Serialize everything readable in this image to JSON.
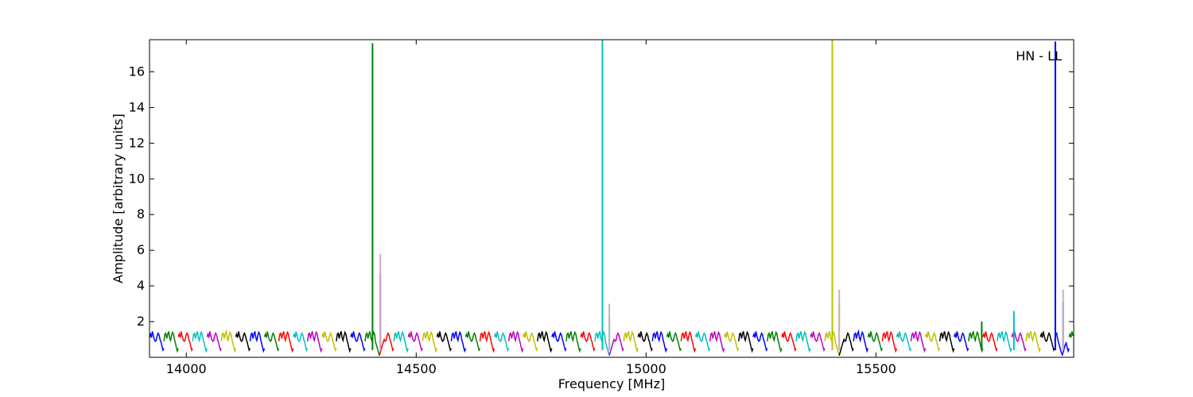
{
  "chart_data": {
    "type": "line",
    "title": "",
    "xlabel": "Frequency [MHz]",
    "ylabel": "Amplitude [arbitrary units]",
    "annotation": "HN - LL",
    "xlim": [
      13920,
      15930
    ],
    "ylim": [
      0,
      17.8
    ],
    "x_ticks": [
      14000,
      14500,
      15000,
      15500
    ],
    "y_ticks": [
      2,
      4,
      6,
      8,
      10,
      12,
      14,
      16
    ],
    "grid": false,
    "segment_width_mhz": 31.25,
    "segment_start_mhz": 13920,
    "segment_colors": [
      "#0000ff",
      "#007f00",
      "#ff0000",
      "#00bfbf",
      "#bf00bf",
      "#bfbf00",
      "#000000"
    ],
    "series": [
      {
        "values": [
          1.15,
          1.3,
          1.1,
          1.45,
          1.2,
          1.0,
          0.9,
          0.95,
          1.2,
          1.35,
          1.25,
          1.0,
          0.85,
          0.6,
          0.4,
          0.5
        ]
      },
      {
        "values": [
          0.9,
          1.3,
          1.35,
          1.05,
          1.3,
          1.45,
          1.1,
          0.95,
          1.2,
          1.4,
          1.3,
          1.0,
          0.8,
          0.55,
          0.35,
          0.5
        ]
      }
    ],
    "spikes": [
      {
        "x": 14405,
        "y": 17.6,
        "color": "#007f00"
      },
      {
        "x": 14422,
        "y": 4.7,
        "color": "#007f00"
      },
      {
        "x": 14422,
        "y": 5.8,
        "color": "#c8b0c8"
      },
      {
        "x": 14905,
        "y": 17.8,
        "color": "#00bfbf"
      },
      {
        "x": 14920,
        "y": 2.3,
        "color": "#00bfbf"
      },
      {
        "x": 14920,
        "y": 3.0,
        "color": "#c8b0c8"
      },
      {
        "x": 15405,
        "y": 17.8,
        "color": "#bfbf00"
      },
      {
        "x": 15420,
        "y": 3.0,
        "color": "#bfbf00"
      },
      {
        "x": 15420,
        "y": 3.8,
        "color": "#c8b0c8"
      },
      {
        "x": 15730,
        "y": 2.0,
        "color": "#007f00"
      },
      {
        "x": 15800,
        "y": 2.6,
        "color": "#00bfbf"
      },
      {
        "x": 15890,
        "y": 17.7,
        "color": "#0000ff"
      },
      {
        "x": 15907,
        "y": 3.1,
        "color": "#0000ff"
      },
      {
        "x": 15907,
        "y": 3.8,
        "color": "#c8b0c8"
      }
    ],
    "dips": [
      14420,
      14920,
      15420,
      15905
    ]
  }
}
